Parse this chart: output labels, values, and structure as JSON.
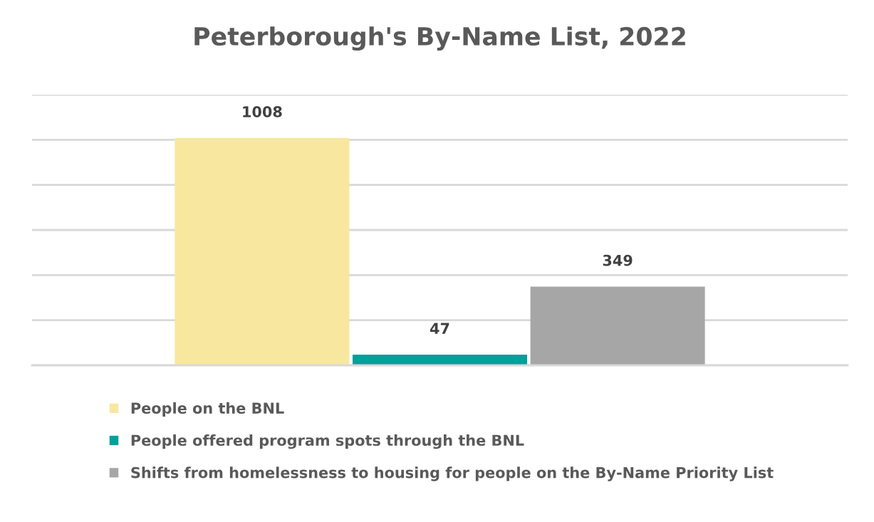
{
  "chart_data": {
    "type": "bar",
    "title": "Peterborough's By-Name List, 2022",
    "categories": [
      null
    ],
    "series": [
      {
        "name": "People on the BNL",
        "color": "#f8e79f",
        "values": [
          1008
        ]
      },
      {
        "name": "People offered program spots through the BNL",
        "color": "#00a19a",
        "values": [
          47
        ]
      },
      {
        "name": "Shifts from homelessness to housing for people on the By-Name Priority List",
        "color": "#a6a6a6",
        "values": [
          349
        ]
      }
    ],
    "ylim": [
      0,
      1200
    ],
    "yticks": [
      {
        "value": 0,
        "label": null
      },
      {
        "value": 200,
        "label": null
      },
      {
        "value": 400,
        "label": null
      },
      {
        "value": 600,
        "label": null
      },
      {
        "value": 800,
        "label": null
      },
      {
        "value": 1000,
        "label": null
      },
      {
        "value": 1200,
        "label": null
      }
    ],
    "grid": "y",
    "legend": "bottom",
    "data_labels": true
  }
}
